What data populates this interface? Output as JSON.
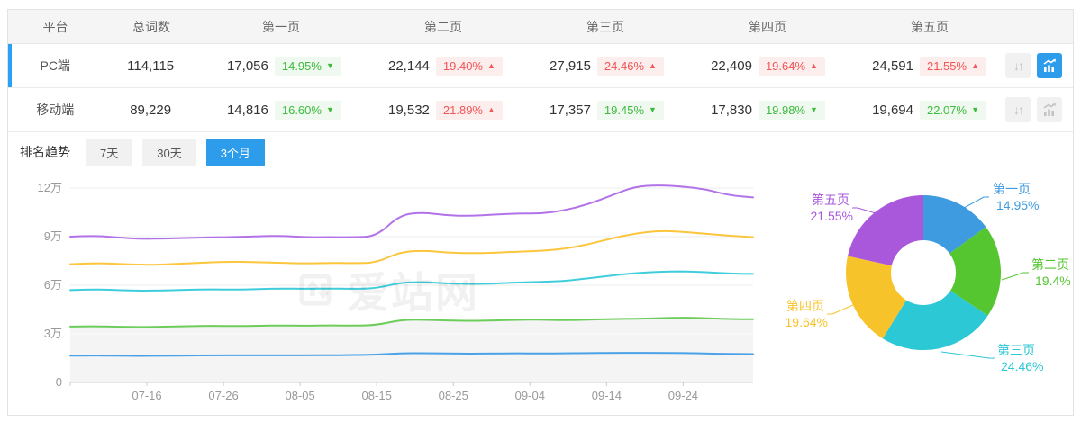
{
  "table": {
    "columns": [
      "平台",
      "总词数",
      "第一页",
      "第二页",
      "第三页",
      "第四页",
      "第五页"
    ],
    "rows": [
      {
        "platform": "PC端",
        "total": "114,115",
        "selected": true,
        "trend_active": true,
        "pages": [
          {
            "count": "17,056",
            "pct": "14.95%",
            "dir": "down"
          },
          {
            "count": "22,144",
            "pct": "19.40%",
            "dir": "up"
          },
          {
            "count": "27,915",
            "pct": "24.46%",
            "dir": "up"
          },
          {
            "count": "22,409",
            "pct": "19.64%",
            "dir": "up"
          },
          {
            "count": "24,591",
            "pct": "21.55%",
            "dir": "up"
          }
        ]
      },
      {
        "platform": "移动端",
        "total": "89,229",
        "selected": false,
        "trend_active": false,
        "pages": [
          {
            "count": "14,816",
            "pct": "16.60%",
            "dir": "down"
          },
          {
            "count": "19,532",
            "pct": "21.89%",
            "dir": "up"
          },
          {
            "count": "17,357",
            "pct": "19.45%",
            "dir": "down"
          },
          {
            "count": "17,830",
            "pct": "19.98%",
            "dir": "down"
          },
          {
            "count": "19,694",
            "pct": "22.07%",
            "dir": "down"
          }
        ]
      }
    ]
  },
  "trend": {
    "label": "排名趋势",
    "tabs": [
      "7天",
      "30天",
      "3个月"
    ],
    "active_tab": "3个月"
  },
  "watermark": "爱站网",
  "icons": {
    "sort_glyphs": "↓↑",
    "up_arrow": "▲",
    "down_arrow": "▼"
  },
  "colors": {
    "accent": "#2D9CEB",
    "selected_border": "#29A1F7",
    "up": "#F35454",
    "up_bg": "#FDEEEE",
    "down": "#3DBB3D",
    "down_bg": "#EFF9EF",
    "grid": "#ededed",
    "axis": "#cccccc",
    "axis_text": "#999999",
    "area_fill": "#f4f4f4"
  },
  "chart_data": [
    {
      "type": "line",
      "stacked": true,
      "period": "3个月",
      "x_start": "07-06",
      "x_end": "10-03",
      "step_days": 3,
      "x_ticks": [
        "07-16",
        "07-26",
        "08-05",
        "08-15",
        "08-25",
        "09-04",
        "09-14",
        "09-24"
      ],
      "y_ticks": [
        "0",
        "3万",
        "6万",
        "9万",
        "12万"
      ],
      "ylim": [
        0,
        126000
      ],
      "unit": "万",
      "grid": true,
      "note": "values are cumulative stacked totals in 万 (10,000s) of keywords",
      "area_fill": {
        "series": "第二页",
        "color": "#f4f4f4"
      },
      "series": [
        {
          "name": "第一页",
          "color": "#4AA1E8",
          "values": [
            1.65,
            1.66,
            1.65,
            1.64,
            1.65,
            1.66,
            1.67,
            1.67,
            1.68,
            1.67,
            1.68,
            1.68,
            1.69,
            1.71,
            1.8,
            1.81,
            1.79,
            1.78,
            1.79,
            1.8,
            1.79,
            1.8,
            1.81,
            1.82,
            1.83,
            1.82,
            1.82,
            1.79,
            1.76,
            1.75
          ]
        },
        {
          "name": "第二页",
          "color": "#6CCD5B",
          "values": [
            3.45,
            3.48,
            3.44,
            3.42,
            3.45,
            3.48,
            3.5,
            3.48,
            3.5,
            3.52,
            3.5,
            3.52,
            3.51,
            3.54,
            3.85,
            3.88,
            3.82,
            3.8,
            3.82,
            3.86,
            3.88,
            3.84,
            3.87,
            3.91,
            3.93,
            3.96,
            4.0,
            3.96,
            3.91,
            3.9
          ]
        },
        {
          "name": "第三页",
          "color": "#40CDDB",
          "values": [
            5.7,
            5.75,
            5.7,
            5.66,
            5.68,
            5.72,
            5.75,
            5.73,
            5.76,
            5.8,
            5.78,
            5.8,
            5.78,
            5.81,
            6.15,
            6.2,
            6.11,
            6.08,
            6.1,
            6.18,
            6.2,
            6.26,
            6.42,
            6.6,
            6.75,
            6.83,
            6.86,
            6.81,
            6.73,
            6.7
          ]
        },
        {
          "name": "第四页",
          "color": "#FBC53C",
          "values": [
            7.3,
            7.38,
            7.32,
            7.26,
            7.28,
            7.35,
            7.42,
            7.46,
            7.42,
            7.38,
            7.35,
            7.38,
            7.36,
            7.39,
            8.05,
            8.15,
            8.01,
            7.98,
            8.0,
            8.08,
            8.13,
            8.25,
            8.52,
            8.9,
            9.2,
            9.36,
            9.3,
            9.18,
            9.05,
            8.97
          ]
        },
        {
          "name": "第五页",
          "color": "#B273E8",
          "values": [
            9.0,
            9.06,
            8.95,
            8.86,
            8.88,
            8.92,
            8.96,
            8.98,
            9.02,
            9.05,
            8.96,
            8.98,
            8.96,
            9.01,
            10.35,
            10.5,
            10.31,
            10.28,
            10.36,
            10.43,
            10.42,
            10.62,
            11.0,
            11.55,
            12.1,
            12.18,
            12.1,
            11.92,
            11.55,
            11.42
          ]
        }
      ]
    },
    {
      "type": "pie",
      "donut": true,
      "slices": [
        {
          "label": "第一页",
          "value": 14.95,
          "display": "14.95%",
          "color": "#3E9BDF"
        },
        {
          "label": "第二页",
          "value": 19.4,
          "display": "19.4%",
          "color": "#55C62F"
        },
        {
          "label": "第三页",
          "value": 24.46,
          "display": "24.46%",
          "color": "#2DC8D5"
        },
        {
          "label": "第四页",
          "value": 19.64,
          "display": "19.64%",
          "color": "#F7C32B"
        },
        {
          "label": "第五页",
          "value": 21.55,
          "display": "21.55%",
          "color": "#A958DB"
        }
      ]
    }
  ]
}
